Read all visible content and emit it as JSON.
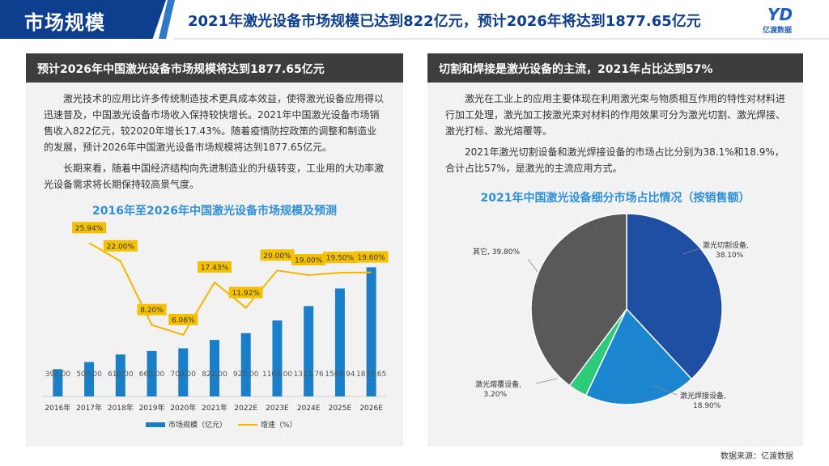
{
  "header": {
    "section_title": "市场规模",
    "headline": "2021年激光设备市场规模已达到822亿元，预计2026年将达到1877.65亿元",
    "logo_mark": "YD",
    "logo_text": "亿渡数据"
  },
  "left_panel": {
    "heading": "预计2026年中国激光设备市场规模将达到1877.65亿元",
    "paragraph1": "激光技术的应用比许多传统制造技术更具成本效益，使得激光设备应用得以迅速普及，中国激光设备市场收入保持较快增长。2021年中国激光设备市场销售收入822亿元，较2020年增长17.43%。随着疫情防控政策的调整和制造业的发展，预计2026年中国激光设备市场规模将达到1877.65亿元。",
    "paragraph2": "长期来看，随着中国经济结构向先进制造业的升级转变，工业用的大功率激光设备需求将长期保持较高景气度。"
  },
  "right_panel": {
    "heading": "切割和焊接是激光设备的主流，2021年占比达到57%",
    "paragraph1": "激光在工业上的应用主要体现在利用激光束与物质相互作用的特性对材料进行加工处理，激光加工按激光束对材料的作用效果可分为激光切割、激光焊接、激光打标、激光熔覆等。",
    "paragraph2": "2021年激光切割设备和激光焊接设备的市场占比分别为38.1%和18.9%，合计占比57%，是激光的主流应用方式。"
  },
  "source": "数据来源：亿渡数据",
  "colors": {
    "brand_blue": "#0e3f8f",
    "bar_blue": "#1a7fc6",
    "line_gold": "#f5b400",
    "title_blue": "#2f8fd9",
    "pie_cut": "#1f4fa3",
    "pie_weld": "#1b86cf",
    "pie_clad": "#2ecc7a",
    "pie_other": "#595959"
  },
  "chart_data": [
    {
      "type": "bar",
      "title": "2016年至2026年中国激光设备市场规模及预测",
      "categories": [
        "2016年",
        "2017年",
        "2018年",
        "2019年",
        "2020年",
        "2021年",
        "2022E",
        "2023E",
        "2024E",
        "2025E",
        "2026E"
      ],
      "series": [
        {
          "name": "市场规模（亿元）",
          "type": "bar",
          "values": [
            397.0,
            500.0,
            610.0,
            660.0,
            700.0,
            822.0,
            920.0,
            1104.0,
            1313.76,
            1569.94,
            1877.65
          ],
          "labels": [
            "397.00",
            "500.00",
            "610.00",
            "660.00",
            "700.00",
            "822.00",
            "920.00",
            "1104.00",
            "1313.76",
            "1569.94",
            "1877.65"
          ]
        },
        {
          "name": "增速（%）",
          "type": "line",
          "values": [
            null,
            25.94,
            22.0,
            8.2,
            6.06,
            17.43,
            11.92,
            20.0,
            19.0,
            19.5,
            19.6
          ],
          "labels": [
            "",
            "25.94%",
            "22.00%",
            "8.20%",
            "6.06%",
            "17.43%",
            "11.92%",
            "20.00%",
            "19.00%",
            "19.50%",
            "19.60%"
          ]
        }
      ],
      "legend": "bottom",
      "grid": false
    },
    {
      "type": "pie",
      "title": "2021年中国激光设备细分市场占比情况（按销售额）",
      "slices": [
        {
          "name": "激光切割设备",
          "value": 38.1,
          "label": "38.10%"
        },
        {
          "name": "激光焊接设备",
          "value": 18.9,
          "label": "18.90%"
        },
        {
          "name": "激光熔覆设备",
          "value": 3.2,
          "label": "3.20%"
        },
        {
          "name": "其它",
          "value": 39.8,
          "label": "39.80%"
        }
      ]
    }
  ]
}
